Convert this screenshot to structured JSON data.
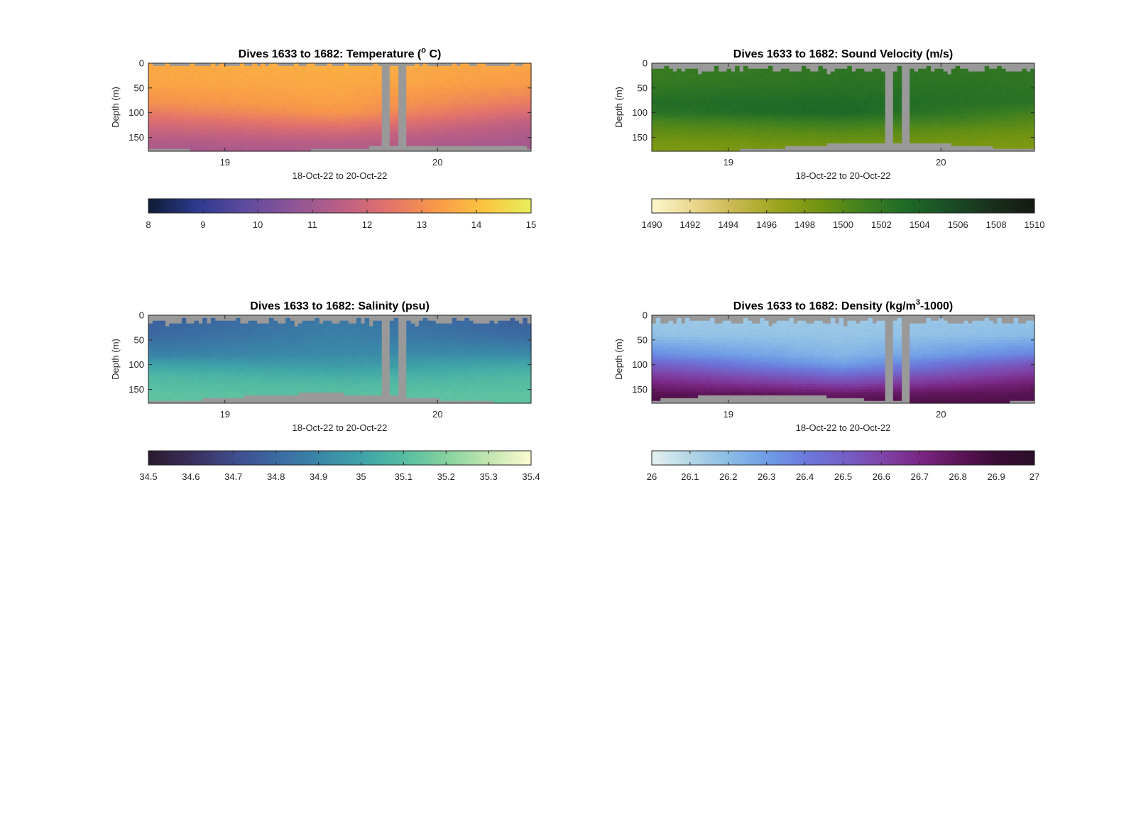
{
  "figure": {
    "background": "#ffffff",
    "missing_color": "#999999"
  },
  "chart_data": [
    {
      "type": "heatmap",
      "title": "Dives 1633 to 1682: Temperature (",
      "title_sup": "o",
      "title_end": " C)",
      "xlabel": "18-Oct-22 to 20-Oct-22",
      "ylabel": "Depth (m)",
      "x_ticks": [
        "19",
        "20"
      ],
      "x_tick_days": [
        19,
        20
      ],
      "xlim_days": [
        18.64,
        20.44
      ],
      "y_ticks": [
        "0",
        "50",
        "100",
        "150"
      ],
      "y_tick_values": [
        0,
        50,
        100,
        150
      ],
      "ylim": [
        0,
        178
      ],
      "gap_days": [
        [
          19.74,
          19.78
        ],
        [
          19.82,
          19.86
        ]
      ],
      "top_missing_m": [
        0,
        8
      ],
      "bottom_limit_m": [
        165,
        178
      ],
      "profile": {
        "depth_m": [
          0,
          40,
          80,
          100,
          120,
          140,
          160,
          178
        ],
        "value_start": [
          13.6,
          13.5,
          13.1,
          12.6,
          12.1,
          11.7,
          11.3,
          11.1
        ],
        "value_mid": [
          13.7,
          13.6,
          13.4,
          13.2,
          12.6,
          12.0,
          11.5,
          11.3
        ],
        "value_end": [
          13.5,
          13.3,
          12.6,
          12.1,
          11.6,
          11.3,
          11.1,
          11.0
        ]
      },
      "colorbar": {
        "min": 8,
        "max": 15,
        "ticks": [
          "8",
          "9",
          "10",
          "11",
          "12",
          "13",
          "14",
          "15"
        ],
        "tick_values": [
          8,
          9,
          10,
          11,
          12,
          13,
          14,
          15
        ],
        "colors": [
          "#0e1c35",
          "#2c3a8e",
          "#5d4a9e",
          "#8c5597",
          "#ba5e85",
          "#e2726c",
          "#f89849",
          "#fcc43e",
          "#e7ef5b"
        ]
      }
    },
    {
      "type": "heatmap",
      "title": "Dives 1633 to 1682: Sound Velocity (m/s)",
      "xlabel": "18-Oct-22 to 20-Oct-22",
      "ylabel": "Depth (m)",
      "x_ticks": [
        "19",
        "20"
      ],
      "x_tick_days": [
        19,
        20
      ],
      "xlim_days": [
        18.64,
        20.44
      ],
      "y_ticks": [
        "0",
        "50",
        "100",
        "150"
      ],
      "y_tick_values": [
        0,
        50,
        100,
        150
      ],
      "ylim": [
        0,
        178
      ],
      "gap_days": [
        [
          19.74,
          19.78
        ],
        [
          19.82,
          19.86
        ]
      ],
      "top_missing_m": [
        5,
        20
      ],
      "bottom_limit_m": [
        160,
        178
      ],
      "profile": {
        "depth_m": [
          0,
          40,
          80,
          100,
          120,
          140,
          160,
          178
        ],
        "value_start": [
          1501.5,
          1501.8,
          1503.0,
          1502.5,
          1500.5,
          1499.5,
          1498.5,
          1498.0
        ],
        "value_mid": [
          1502.0,
          1502.5,
          1503.3,
          1503.5,
          1501.5,
          1500.0,
          1499.0,
          1498.3
        ],
        "value_end": [
          1502.0,
          1502.3,
          1502.5,
          1501.0,
          1500.0,
          1499.0,
          1498.3,
          1498.0
        ]
      },
      "colorbar": {
        "min": 1490,
        "max": 1510,
        "ticks": [
          "1490",
          "1492",
          "1494",
          "1496",
          "1498",
          "1500",
          "1502",
          "1504",
          "1506",
          "1508",
          "1510"
        ],
        "tick_values": [
          1490,
          1492,
          1494,
          1496,
          1498,
          1500,
          1502,
          1504,
          1506,
          1508,
          1510
        ],
        "colors": [
          "#fdf7cd",
          "#e9d68c",
          "#c7b74c",
          "#9aa41c",
          "#6f9311",
          "#3f8020",
          "#1e6a27",
          "#1a4e25",
          "#192f1c",
          "#151a12"
        ]
      }
    },
    {
      "type": "heatmap",
      "title": "Dives 1633 to 1682: Salinity (psu)",
      "xlabel": "18-Oct-22 to 20-Oct-22",
      "ylabel": "Depth (m)",
      "x_ticks": [
        "19",
        "20"
      ],
      "x_tick_days": [
        19,
        20
      ],
      "xlim_days": [
        18.64,
        20.44
      ],
      "y_ticks": [
        "0",
        "50",
        "100",
        "150"
      ],
      "y_tick_values": [
        0,
        50,
        100,
        150
      ],
      "ylim": [
        0,
        178
      ],
      "gap_days": [
        [
          19.74,
          19.78
        ],
        [
          19.82,
          19.86
        ]
      ],
      "top_missing_m": [
        5,
        20
      ],
      "bottom_limit_m": [
        158,
        176
      ],
      "profile": {
        "depth_m": [
          0,
          40,
          80,
          100,
          120,
          140,
          160,
          178
        ],
        "value_start": [
          34.76,
          34.8,
          34.88,
          35.0,
          35.07,
          35.1,
          35.12,
          35.12
        ],
        "value_mid": [
          34.85,
          34.88,
          34.92,
          34.97,
          35.03,
          35.08,
          35.11,
          35.12
        ],
        "value_end": [
          34.76,
          34.8,
          34.92,
          35.02,
          35.07,
          35.1,
          35.12,
          35.12
        ]
      },
      "colorbar": {
        "min": 34.5,
        "max": 35.4,
        "ticks": [
          "34.5",
          "34.6",
          "34.7",
          "34.8",
          "34.9",
          "35",
          "35.1",
          "35.2",
          "35.3",
          "35.4"
        ],
        "tick_values": [
          34.5,
          34.6,
          34.7,
          34.8,
          34.9,
          35.0,
          35.1,
          35.2,
          35.3,
          35.4
        ],
        "colors": [
          "#2a1a2f",
          "#3a2e5a",
          "#3f4b8c",
          "#3b69a1",
          "#3a86a8",
          "#3fa2a8",
          "#56bda2",
          "#86d29e",
          "#c1e5b0",
          "#fdfbd3"
        ]
      }
    },
    {
      "type": "heatmap",
      "title": "Dives 1633 to 1682: Density (kg/m",
      "title_sup": "3",
      "title_end": "-1000)",
      "xlabel": "18-Oct-22 to 20-Oct-22",
      "ylabel": "Depth (m)",
      "x_ticks": [
        "19",
        "20"
      ],
      "x_tick_days": [
        19,
        20
      ],
      "xlim_days": [
        18.64,
        20.44
      ],
      "y_ticks": [
        "0",
        "50",
        "100",
        "150"
      ],
      "y_tick_values": [
        0,
        50,
        100,
        150
      ],
      "ylim": [
        0,
        178
      ],
      "gap_days": [
        [
          19.74,
          19.78
        ],
        [
          19.82,
          19.86
        ]
      ],
      "top_missing_m": [
        5,
        20
      ],
      "bottom_limit_m": [
        160,
        178
      ],
      "profile": {
        "depth_m": [
          0,
          40,
          80,
          100,
          120,
          140,
          160,
          178
        ],
        "value_start": [
          26.15,
          26.18,
          26.35,
          26.5,
          26.62,
          26.72,
          26.82,
          26.86
        ],
        "value_mid": [
          26.15,
          26.17,
          26.22,
          26.3,
          26.45,
          26.6,
          26.78,
          26.84
        ],
        "value_end": [
          26.17,
          26.2,
          26.38,
          26.55,
          26.65,
          26.75,
          26.82,
          26.85
        ]
      },
      "colorbar": {
        "min": 26,
        "max": 27,
        "ticks": [
          "26",
          "26.1",
          "26.2",
          "26.3",
          "26.4",
          "26.5",
          "26.6",
          "26.7",
          "26.8",
          "26.9",
          "27"
        ],
        "tick_values": [
          26.0,
          26.1,
          26.2,
          26.3,
          26.4,
          26.5,
          26.6,
          26.7,
          26.8,
          26.9,
          27.0
        ],
        "colors": [
          "#e6f1f1",
          "#b3d6e6",
          "#8bbde6",
          "#6f9de6",
          "#6c7bdc",
          "#7460c6",
          "#7e44a8",
          "#7a2784",
          "#5e1559",
          "#3b0c37",
          "#2c0e2a"
        ]
      }
    }
  ]
}
